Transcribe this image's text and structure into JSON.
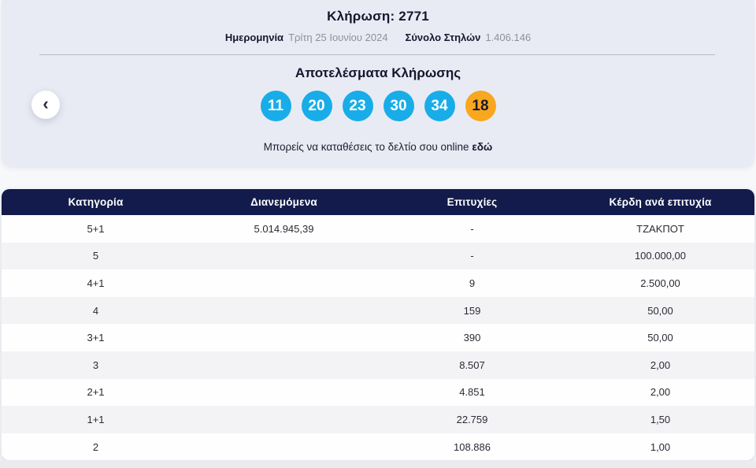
{
  "draw": {
    "title": "Κλήρωση: 2771",
    "date_label": "Ημερομηνία",
    "date_value": "Τρίτη 25 Ιουνίου 2024",
    "columns_label": "Σύνολο Στηλών",
    "columns_value": "1.406.146",
    "results_title": "Αποτελέσματα Κλήρωσης",
    "numbers": [
      "11",
      "20",
      "23",
      "30",
      "34"
    ],
    "joker_number": "18",
    "note_text": "Μπορείς να καταθέσεις το δελτίο σου online",
    "note_link": "εδώ",
    "back_icon": "‹"
  },
  "colors": {
    "ball_blue": "#18ade8",
    "ball_orange": "#f8a71f",
    "header_navy": "#121b4b",
    "panel_bg": "#e9ebf4"
  },
  "table": {
    "headers": [
      "Κατηγορία",
      "Διανεμόμενα",
      "Επιτυχίες",
      "Κέρδη ανά επιτυχία"
    ],
    "rows": [
      [
        "5+1",
        "5.014.945,39",
        "-",
        "ΤΖΑΚΠΟΤ"
      ],
      [
        "5",
        "",
        "-",
        "100.000,00"
      ],
      [
        "4+1",
        "",
        "9",
        "2.500,00"
      ],
      [
        "4",
        "",
        "159",
        "50,00"
      ],
      [
        "3+1",
        "",
        "390",
        "50,00"
      ],
      [
        "3",
        "",
        "8.507",
        "2,00"
      ],
      [
        "2+1",
        "",
        "4.851",
        "2,00"
      ],
      [
        "1+1",
        "",
        "22.759",
        "1,50"
      ],
      [
        "2",
        "",
        "108.886",
        "1,00"
      ]
    ]
  }
}
